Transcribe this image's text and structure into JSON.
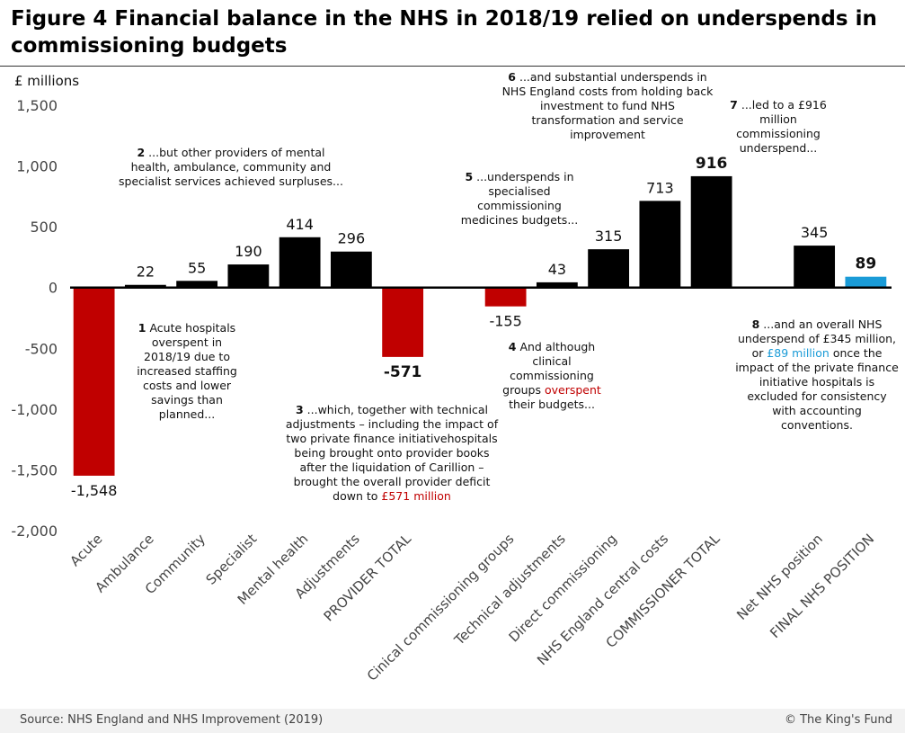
{
  "title": "Figure 4 Financial balance in the NHS in 2018/19 relied on underspends in commissioning budgets",
  "source": "Source: NHS England and NHS Improvement (2019)",
  "copyright": "© The King's Fund",
  "colors": {
    "black": "#000000",
    "red": "#c00000",
    "blue": "#1a9bd7"
  },
  "chart_data": {
    "type": "bar",
    "ylabel": "£ millions",
    "ylim": [
      -2000,
      1500
    ],
    "yticks": [
      1500,
      1000,
      500,
      0,
      -500,
      -1000,
      -1500,
      -2000
    ],
    "ytick_labels": [
      "1,500",
      "1,000",
      "500",
      "0",
      "-500",
      "-1,000",
      "-1,500",
      "-2,000"
    ],
    "categories": [
      "Acute",
      "Ambulance",
      "Community",
      "Specialist",
      "Mental health",
      "Adjustments",
      "PROVIDER TOTAL",
      "",
      "Cinical commissioning groups",
      "Technical adjustments",
      "Direct commissioning",
      "NHS England central costs",
      "COMMISSIONER TOTAL",
      "",
      "Net NHS position",
      "FINAL NHS POSITION"
    ],
    "values": [
      -1548,
      22,
      55,
      190,
      414,
      296,
      -571,
      null,
      -155,
      43,
      315,
      713,
      916,
      null,
      345,
      89
    ],
    "labels": [
      "-1,548",
      "22",
      "55",
      "190",
      "414",
      "296",
      "-571",
      "",
      "-155",
      "43",
      "315",
      "713",
      "916",
      "",
      "345",
      "89"
    ],
    "bold_labels": [
      6,
      12,
      15
    ],
    "bar_colors": [
      "red",
      "black",
      "black",
      "black",
      "black",
      "black",
      "red",
      null,
      "red",
      "black",
      "black",
      "black",
      "black",
      null,
      "black",
      "blue"
    ]
  },
  "annotations": {
    "a1": {
      "num": "1",
      "text": "Acute hospitals overspent in 2018/19 due to increased staffing costs and lower savings than planned..."
    },
    "a2": {
      "num": "2",
      "text": "...but other providers of mental health, ambulance, community and specialist services achieved surpluses..."
    },
    "a3": {
      "num": "3",
      "text": "...which, together with technical adjustments – including the impact of two private finance initiativehospitals being brought onto provider books after the liquidation of Carillion – brought the overall provider deficit down to",
      "highlight": "£571 million"
    },
    "a4": {
      "num": "4",
      "text_before": "And although clinical commissioning groups",
      "highlight": "overspent",
      "text_after": "their budgets..."
    },
    "a5": {
      "num": "5",
      "text": "...underspends in specialised commissioning medicines budgets..."
    },
    "a6": {
      "num": "6",
      "text": "...and substantial underspends in NHS England costs from holding back investment to fund NHS transformation and service improvement"
    },
    "a7": {
      "num": "7",
      "text": "...led to a £916 million commissioning underspend..."
    },
    "a8": {
      "num": "8",
      "text_before": "...and an overall NHS underspend of £345 million, or",
      "highlight": "£89 million",
      "text_after": "once the impact of the private finance initiative hospitals is excluded for consistency with accounting conventions."
    }
  }
}
